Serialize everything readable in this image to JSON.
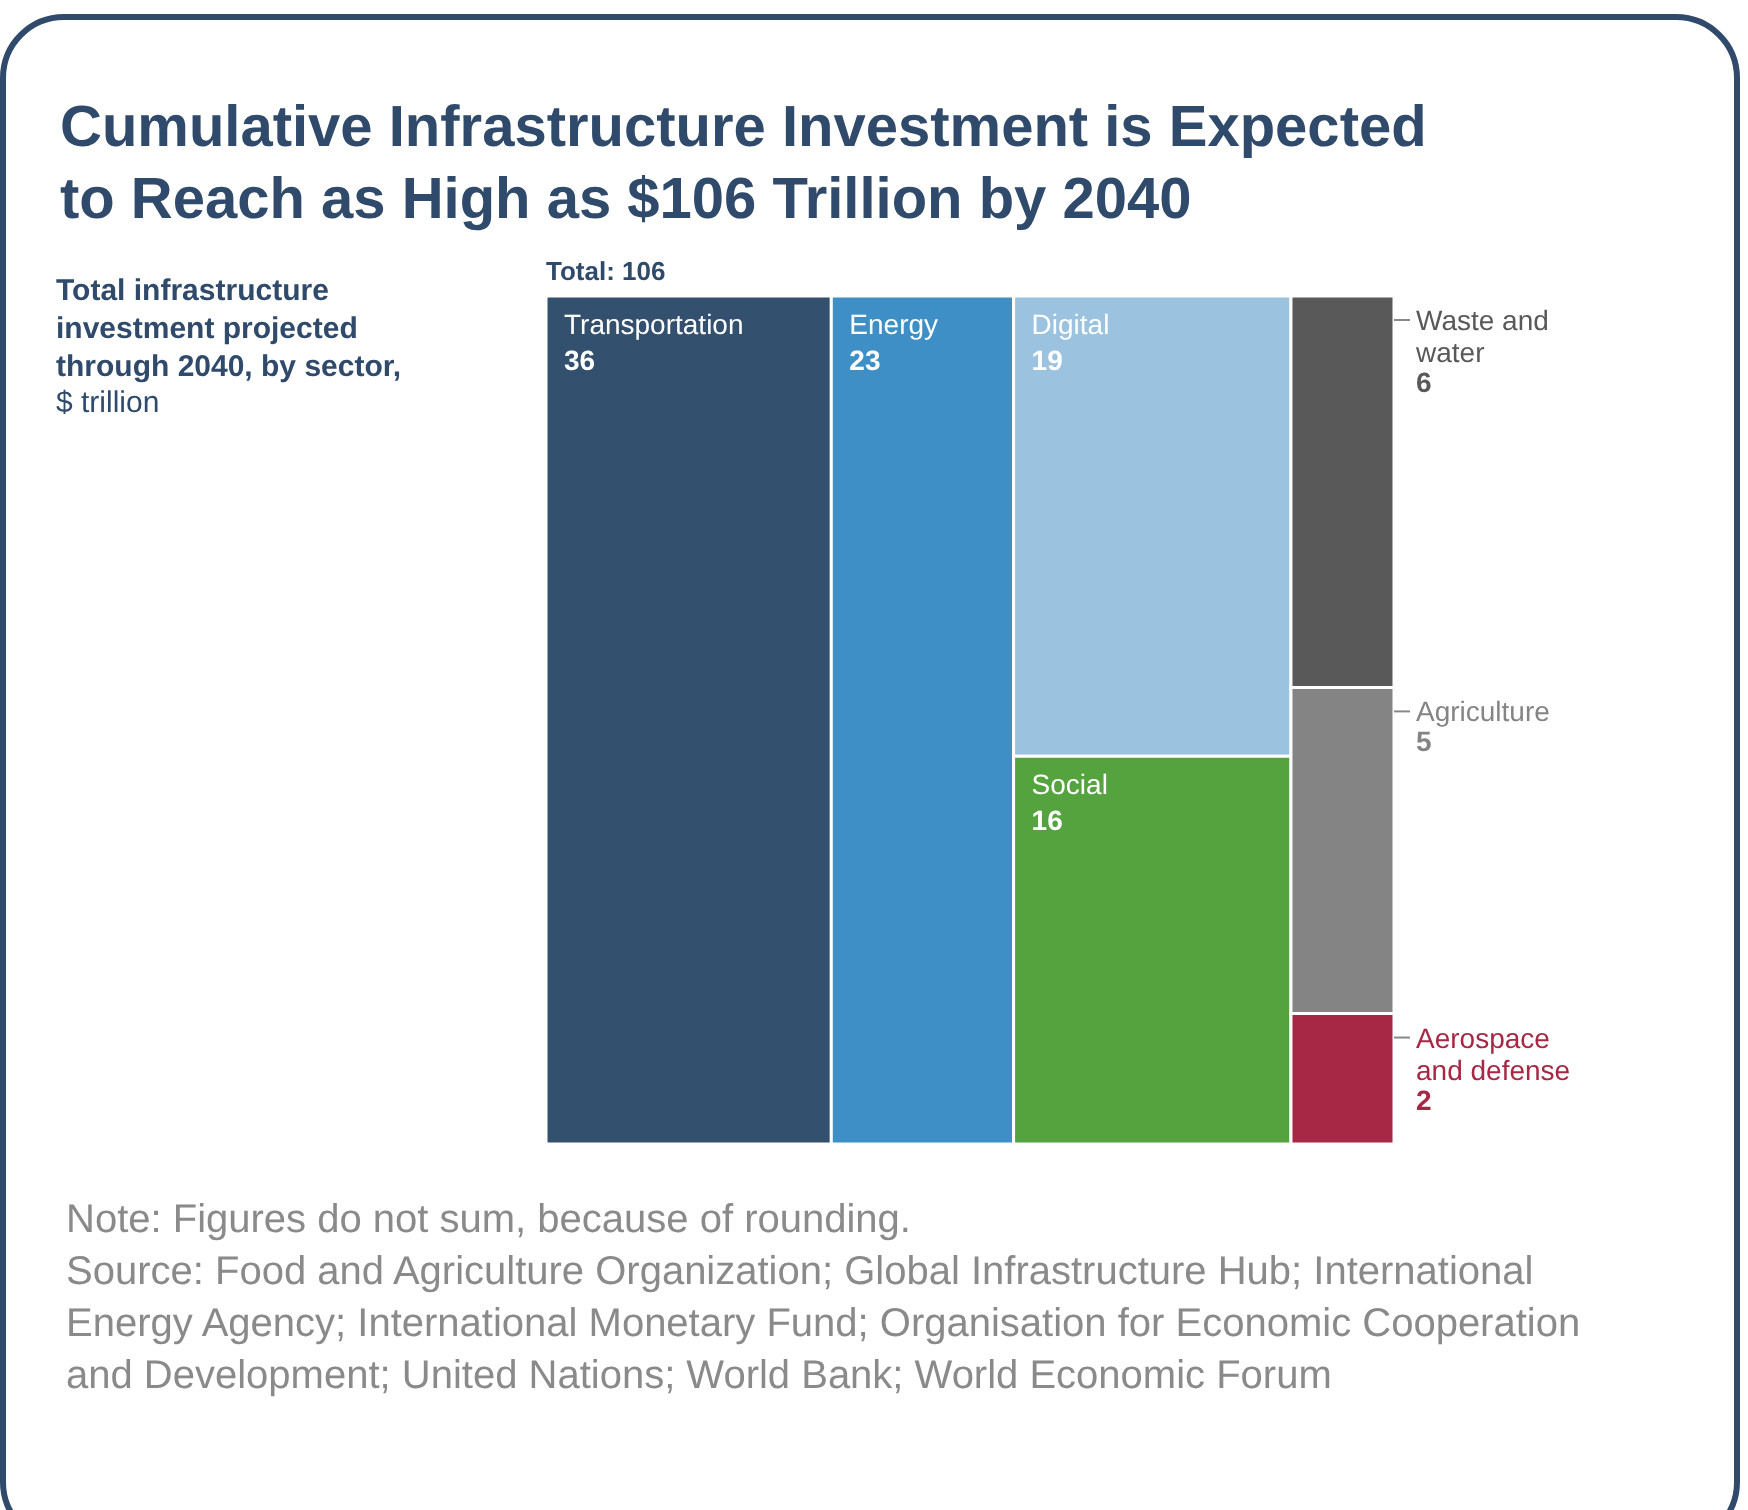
{
  "chart_data": {
    "type": "other",
    "title": "Cumulative Infrastructure Investment is Expected to Reach as High as $106 Trillion by 2040",
    "subtitle": "Total infrastructure investment projected through 2040, by sector,",
    "ylabel": "$ trillion",
    "categories": [
      "Transportation",
      "Energy",
      "Digital",
      "Social",
      "Waste and water",
      "Agriculture",
      "Aerospace and defense"
    ],
    "values": [
      36,
      23,
      19,
      16,
      6,
      5,
      2
    ],
    "colors": [
      "#34506f",
      "#3d8fc6",
      "#9bc3e0",
      "#55a33f",
      "#595959",
      "#848484",
      "#a72845"
    ],
    "data_labels": true,
    "annotations": [
      "Total: 106",
      "Note: Figures do not sum, because of rounding.",
      "Source: Food and Agriculture Organization; Global Infrastructure Hub; International Energy Agency; International Monetary Fund; Organisation for Economic Cooperation and Development; United Nations; World Bank; World Economic Forum"
    ]
  }
}
